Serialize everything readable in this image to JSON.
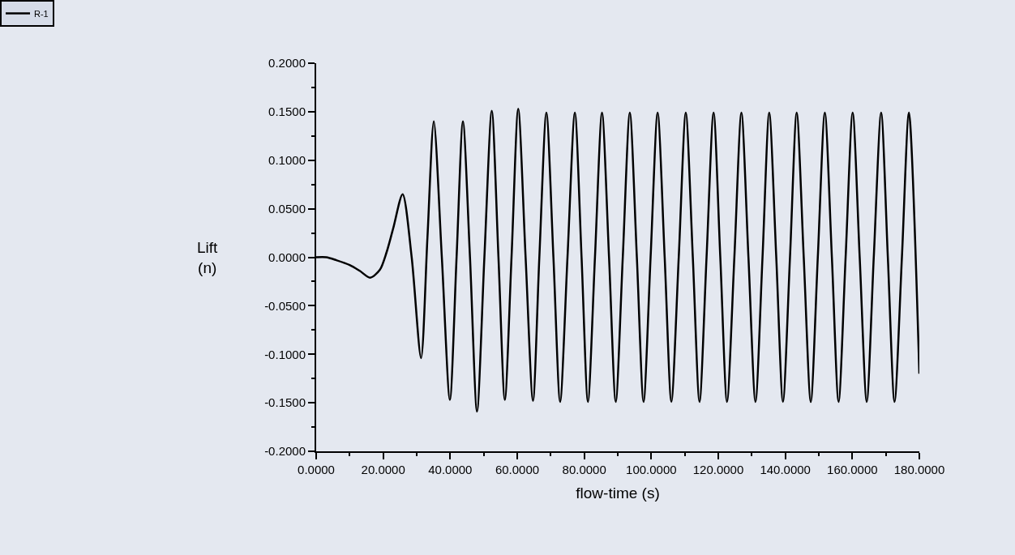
{
  "chart_data": {
    "type": "line",
    "xlabel": "flow-time (s)",
    "ylabel": "Lift\n(n)",
    "xlim": [
      0,
      180
    ],
    "ylim": [
      -0.2,
      0.2
    ],
    "xticks": [
      {
        "value": 0,
        "label": "0.0000"
      },
      {
        "value": 10,
        "label": null
      },
      {
        "value": 20,
        "label": "20.0000"
      },
      {
        "value": 30,
        "label": null
      },
      {
        "value": 40,
        "label": "40.0000"
      },
      {
        "value": 50,
        "label": null
      },
      {
        "value": 60,
        "label": "60.0000"
      },
      {
        "value": 70,
        "label": null
      },
      {
        "value": 80,
        "label": "80.0000"
      },
      {
        "value": 90,
        "label": null
      },
      {
        "value": 100,
        "label": "100.0000"
      },
      {
        "value": 110,
        "label": null
      },
      {
        "value": 120,
        "label": "120.0000"
      },
      {
        "value": 130,
        "label": null
      },
      {
        "value": 140,
        "label": "140.0000"
      },
      {
        "value": 150,
        "label": null
      },
      {
        "value": 160,
        "label": "160.0000"
      },
      {
        "value": 170,
        "label": null
      },
      {
        "value": 180,
        "label": "180.0000"
      }
    ],
    "yticks": [
      {
        "value": -0.2,
        "label": "-0.2000"
      },
      {
        "value": -0.175,
        "label": null
      },
      {
        "value": -0.15,
        "label": "-0.1500"
      },
      {
        "value": -0.125,
        "label": null
      },
      {
        "value": -0.1,
        "label": "-0.1000"
      },
      {
        "value": -0.075,
        "label": null
      },
      {
        "value": -0.05,
        "label": "-0.0500"
      },
      {
        "value": -0.025,
        "label": null
      },
      {
        "value": 0,
        "label": "0.0000"
      },
      {
        "value": 0.025,
        "label": null
      },
      {
        "value": 0.05,
        "label": "0.0500"
      },
      {
        "value": 0.075,
        "label": null
      },
      {
        "value": 0.1,
        "label": "0.1000"
      },
      {
        "value": 0.125,
        "label": null
      },
      {
        "value": 0.15,
        "label": "0.1500"
      },
      {
        "value": 0.175,
        "label": null
      },
      {
        "value": 0.2,
        "label": "0.2000"
      }
    ],
    "grid": false,
    "legend": "top left",
    "marker": "none",
    "line_style": "solid",
    "series": [
      {
        "name": "R-1",
        "color": "#000000",
        "x": [
          0,
          3,
          6,
          10,
          13,
          16.1,
          19,
          21,
          23,
          25.8,
          28.5,
          31.3,
          33.2,
          35.1,
          37.5,
          39.9,
          41.9,
          43.8,
          45.9,
          48.0,
          50.2,
          52.4,
          54.4,
          56.3,
          58.3,
          60.3,
          62.5,
          64.7,
          66.6,
          68.7,
          70.8,
          72.8,
          75.0,
          77.2,
          79.2,
          81.1,
          83.2,
          85.3,
          87.4,
          89.4,
          91.5,
          93.6,
          95.7,
          97.7,
          99.8,
          101.9,
          104.0,
          106.0,
          108.2,
          110.3,
          112.4,
          114.4,
          116.5,
          118.6,
          120.6,
          122.6,
          124.8,
          126.9,
          129.0,
          131.1,
          133.2,
          135.2,
          137.3,
          139.3,
          141.4,
          143.4,
          145.5,
          147.6,
          149.7,
          151.8,
          153.9,
          155.9,
          158.0,
          160.1,
          162.2,
          164.3,
          166.4,
          168.6,
          170.6,
          172.6,
          174.8,
          176.9,
          180
        ],
        "values": [
          0.0,
          0.0,
          -0.003,
          -0.008,
          -0.014,
          -0.021,
          -0.013,
          0.005,
          0.03,
          0.065,
          0.0,
          -0.104,
          0.02,
          0.14,
          0.0,
          -0.147,
          0.0,
          0.14,
          0.0,
          -0.159,
          0.0,
          0.151,
          0.0,
          -0.147,
          0.0,
          0.153,
          0.0,
          -0.148,
          0.0,
          0.149,
          0.0,
          -0.149,
          0.0,
          0.149,
          0.0,
          -0.149,
          0.0,
          0.149,
          0.0,
          -0.149,
          0.0,
          0.149,
          0.0,
          -0.149,
          0.0,
          0.149,
          0.0,
          -0.149,
          0.0,
          0.149,
          0.0,
          -0.149,
          0.0,
          0.149,
          0.0,
          -0.149,
          0.0,
          0.149,
          0.0,
          -0.149,
          0.0,
          0.149,
          0.0,
          -0.149,
          0.0,
          0.149,
          0.0,
          -0.149,
          0.0,
          0.149,
          0.0,
          -0.149,
          0.0,
          0.149,
          0.0,
          -0.149,
          0.0,
          0.149,
          0.0,
          -0.149,
          0.0,
          0.149,
          -0.12
        ]
      }
    ]
  }
}
